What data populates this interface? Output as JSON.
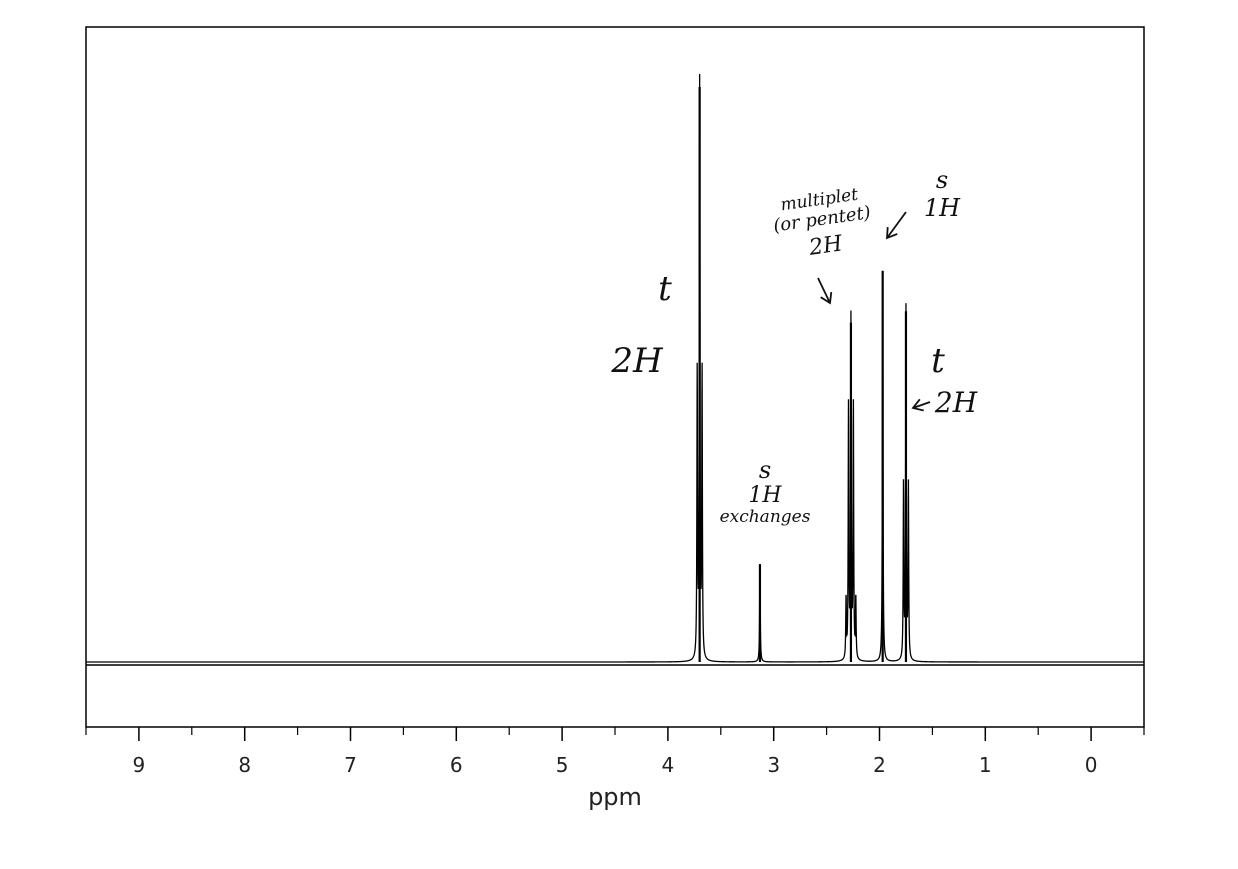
{
  "chart_data": {
    "type": "line",
    "title": "",
    "xlabel": "ppm",
    "ylabel": "",
    "xlim": [
      9.5,
      -0.5
    ],
    "x_reversed": true,
    "grid": false,
    "legend": "none",
    "x_ticks": [
      "9",
      "8",
      "7",
      "6",
      "5",
      "4",
      "3",
      "2",
      "1",
      "0"
    ],
    "series": [
      {
        "peaks": [
          {
            "ppm": 3.7,
            "relative_height": 1.0,
            "pattern": "triplet"
          },
          {
            "ppm": 3.13,
            "relative_height": 0.17,
            "pattern": "singlet"
          },
          {
            "ppm": 2.27,
            "relative_height": 0.59,
            "pattern": "multiplet"
          },
          {
            "ppm": 1.97,
            "relative_height": 0.68,
            "pattern": "singlet"
          },
          {
            "ppm": 1.75,
            "relative_height": 0.61,
            "pattern": "triplet"
          }
        ]
      }
    ],
    "annotations": [
      {
        "lines": [
          "t",
          "2H"
        ]
      },
      {
        "lines": [
          "s",
          "1H",
          "exchanges"
        ]
      },
      {
        "lines": [
          "multiplet",
          "(or pentet)",
          "2H"
        ]
      },
      {
        "lines": [
          "s",
          "1H"
        ]
      },
      {
        "lines": [
          "t",
          "2H"
        ]
      }
    ],
    "colors": {
      "line": "#000000",
      "axis": "#000000",
      "text": "#222222"
    }
  }
}
